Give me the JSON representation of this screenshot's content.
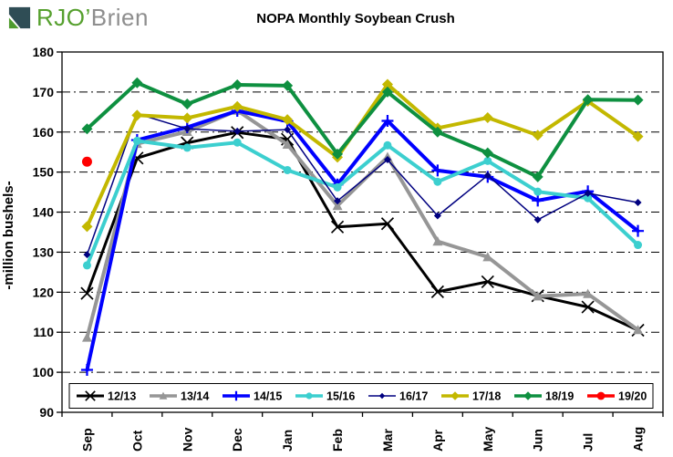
{
  "logo": {
    "text_primary": "RJO’",
    "text_secondary": "Brien",
    "color_primary": "#56A02E",
    "color_secondary": "#8E8E8E",
    "icon_dark": "#2F4D55",
    "icon_green": "#4E9B2D"
  },
  "chart_data": {
    "type": "line",
    "title": "NOPA Monthly Soybean Crush",
    "xlabel": "",
    "ylabel": "-million bushels-",
    "ylim": [
      90,
      180
    ],
    "ytick_step": 10,
    "grid": "horizontal-dash-dot",
    "legend_position": "bottom-inside",
    "categories": [
      "Sep",
      "Oct",
      "Nov",
      "Dec",
      "Jan",
      "Feb",
      "Mar",
      "Apr",
      "May",
      "Jun",
      "Jul",
      "Aug"
    ],
    "series": [
      {
        "name": "12/13",
        "color": "#000000",
        "marker": "x",
        "marker_size": 6.5,
        "line_width": 3,
        "values": [
          119.7,
          153.5,
          157.3,
          159.9,
          158.2,
          136.3,
          137.1,
          120.1,
          122.6,
          119.1,
          116.3,
          110.5
        ]
      },
      {
        "name": "13/14",
        "color": "#969696",
        "marker": "triangle",
        "marker_size": 5.5,
        "line_width": 4,
        "values": [
          108.7,
          157.1,
          160.1,
          165.4,
          156.9,
          141.6,
          153.8,
          132.7,
          128.8,
          119.0,
          119.6,
          110.6
        ]
      },
      {
        "name": "14/15",
        "color": "#0000FF",
        "marker": "plus",
        "marker_size": 6.5,
        "line_width": 4,
        "values": [
          100.6,
          158.0,
          161.2,
          165.3,
          162.7,
          146.9,
          162.8,
          150.4,
          148.8,
          142.9,
          145.2,
          135.3
        ]
      },
      {
        "name": "15/16",
        "color": "#3CCFCF",
        "marker": "circle",
        "marker_size": 4.5,
        "line_width": 4,
        "values": [
          126.7,
          157.8,
          156.1,
          157.4,
          150.5,
          146.2,
          156.7,
          147.6,
          152.8,
          145.1,
          143.5,
          131.8
        ]
      },
      {
        "name": "16/17",
        "color": "#000080",
        "marker": "diamond",
        "marker_size": 4,
        "line_width": 1.5,
        "values": [
          129.4,
          164.6,
          160.8,
          160.2,
          160.6,
          142.8,
          153.1,
          139.1,
          149.2,
          138.1,
          144.7,
          142.4
        ]
      },
      {
        "name": "17/18",
        "color": "#C3B800",
        "marker": "diamond",
        "marker_size": 6,
        "line_width": 4,
        "values": [
          136.4,
          164.2,
          163.5,
          166.4,
          163.1,
          153.7,
          171.9,
          161.0,
          163.6,
          159.2,
          167.7,
          158.9
        ]
      },
      {
        "name": "18/19",
        "color": "#0E9040",
        "marker": "diamond",
        "marker_size": 6,
        "line_width": 4,
        "values": [
          160.8,
          172.3,
          167.0,
          171.8,
          171.6,
          154.5,
          170.0,
          160.0,
          154.8,
          148.8,
          168.1,
          168.0
        ]
      },
      {
        "name": "19/20",
        "color": "#FF0000",
        "marker": "circle",
        "marker_size": 5.5,
        "line_width": 4,
        "values": [
          152.6,
          null,
          null,
          null,
          null,
          null,
          null,
          null,
          null,
          null,
          null,
          null
        ]
      }
    ]
  }
}
